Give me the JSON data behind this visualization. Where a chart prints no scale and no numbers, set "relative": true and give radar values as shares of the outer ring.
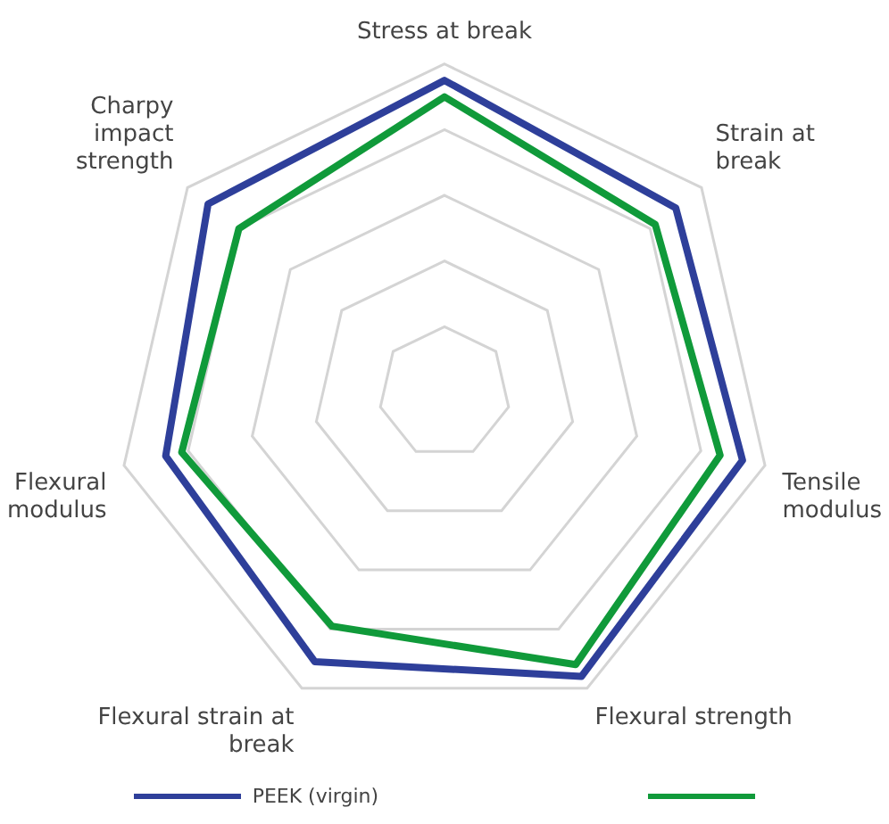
{
  "chart_data": {
    "type": "radar",
    "relative": true,
    "categories": [
      "Stress at break",
      "Strain at\nbreak",
      "Tensile\nmodulus",
      "Flexural strength",
      "Flexural strain at\nbreak",
      "Flexural\nmodulus",
      "Charpy\nimpact\nstrength"
    ],
    "series": [
      {
        "name": "PEEK (virgin)",
        "color": "#2e3f9a",
        "values": [
          0.95,
          0.9,
          0.93,
          0.96,
          0.91,
          0.87,
          0.92
        ]
      },
      {
        "color": "#109a3a",
        "values": [
          0.9,
          0.82,
          0.86,
          0.92,
          0.79,
          0.82,
          0.8
        ]
      }
    ],
    "grid": true,
    "legend": "bottom",
    "marker": "none"
  }
}
